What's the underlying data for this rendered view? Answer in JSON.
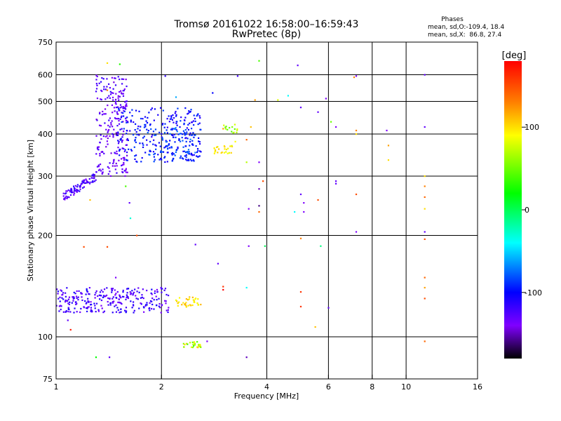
{
  "chart_data": {
    "type": "scatter",
    "title": "Tromsø 20161022 16:58:00–16:59:43",
    "subtitle": "RwPretec (8p)",
    "xlabel": "Frequency [MHz]",
    "ylabel": "Stationary phase Virtual Height [km]",
    "xscale": "log",
    "yscale": "log",
    "xlim": [
      1,
      16
    ],
    "ylim": [
      75,
      750
    ],
    "xticks": [
      1,
      2,
      4,
      6,
      8,
      10,
      16
    ],
    "yticks": [
      75,
      100,
      200,
      300,
      400,
      500,
      600,
      750
    ],
    "grid_x": [
      2,
      4,
      6,
      8,
      10
    ],
    "grid_y": [
      100,
      200,
      300,
      400,
      500,
      600
    ],
    "grid": true,
    "stats": {
      "title": "Phases",
      "line1": "mean, sd,O:-109.4, 18.4",
      "line2": "mean, sd,X:  86.8, 27.4"
    },
    "colorbar": {
      "label": "[deg]",
      "min": -180,
      "max": 180,
      "ticks": [
        100,
        0,
        -100
      ],
      "colors": [
        "#ff0000",
        "#ff8000",
        "#ffff00",
        "#00ff00",
        "#00ffff",
        "#0000ff",
        "#8000ff",
        "#000000"
      ]
    },
    "clusters": [
      {
        "f": [
          1.05,
          1.3
        ],
        "h": [
          260,
          300
        ],
        "phase": [
          -140,
          -110
        ],
        "n": 90,
        "trend": "up"
      },
      {
        "f": [
          1.3,
          1.6
        ],
        "h": [
          300,
          600
        ],
        "phase": [
          -145,
          -115
        ],
        "n": 240
      },
      {
        "f": [
          1.5,
          2.6
        ],
        "h": [
          330,
          480
        ],
        "phase": [
          -115,
          -85
        ],
        "n": 260
      },
      {
        "f": [
          1.8,
          2.6
        ],
        "h": [
          330,
          420
        ],
        "phase": [
          -100,
          -70
        ],
        "n": 80
      },
      {
        "f": [
          2.8,
          3.2
        ],
        "h": [
          350,
          370
        ],
        "phase": [
          80,
          110
        ],
        "n": 25
      },
      {
        "f": [
          3.0,
          3.3
        ],
        "h": [
          400,
          430
        ],
        "phase": [
          40,
          80
        ],
        "n": 15
      },
      {
        "f": [
          1.0,
          2.1
        ],
        "h": [
          118,
          140
        ],
        "phase": [
          -140,
          -105
        ],
        "n": 280
      },
      {
        "f": [
          2.2,
          2.6
        ],
        "h": [
          122,
          132
        ],
        "phase": [
          85,
          115
        ],
        "n": 35
      },
      {
        "f": [
          2.3,
          2.6
        ],
        "h": [
          93,
          97
        ],
        "phase": [
          30,
          110
        ],
        "n": 25
      }
    ],
    "points": [
      {
        "f": 1.4,
        "h": 650,
        "phase": 100
      },
      {
        "f": 1.52,
        "h": 645,
        "phase": 30
      },
      {
        "f": 1.4,
        "h": 540,
        "phase": 130
      },
      {
        "f": 1.25,
        "h": 255,
        "phase": 110
      },
      {
        "f": 1.58,
        "h": 280,
        "phase": 40
      },
      {
        "f": 1.62,
        "h": 250,
        "phase": -130
      },
      {
        "f": 1.63,
        "h": 225,
        "phase": -30
      },
      {
        "f": 1.7,
        "h": 200,
        "phase": 150
      },
      {
        "f": 1.2,
        "h": 185,
        "phase": 150
      },
      {
        "f": 1.4,
        "h": 185,
        "phase": 150
      },
      {
        "f": 1.48,
        "h": 150,
        "phase": -140
      },
      {
        "f": 1.08,
        "h": 112,
        "phase": -130
      },
      {
        "f": 1.1,
        "h": 105,
        "phase": 170
      },
      {
        "f": 1.3,
        "h": 87,
        "phase": 20
      },
      {
        "f": 1.42,
        "h": 87,
        "phase": -130
      },
      {
        "f": 2.05,
        "h": 595,
        "phase": -115
      },
      {
        "f": 2.2,
        "h": 515,
        "phase": -60
      },
      {
        "f": 2.8,
        "h": 530,
        "phase": -100
      },
      {
        "f": 3.3,
        "h": 595,
        "phase": -120
      },
      {
        "f": 3.0,
        "h": 415,
        "phase": 120
      },
      {
        "f": 3.25,
        "h": 380,
        "phase": 90
      },
      {
        "f": 3.5,
        "h": 385,
        "phase": 140
      },
      {
        "f": 3.6,
        "h": 420,
        "phase": 110
      },
      {
        "f": 3.7,
        "h": 505,
        "phase": 120
      },
      {
        "f": 3.8,
        "h": 660,
        "phase": 40
      },
      {
        "f": 3.8,
        "h": 330,
        "phase": -140
      },
      {
        "f": 3.8,
        "h": 275,
        "phase": -150
      },
      {
        "f": 3.9,
        "h": 290,
        "phase": 150
      },
      {
        "f": 3.8,
        "h": 245,
        "phase": -160
      },
      {
        "f": 3.8,
        "h": 235,
        "phase": 140
      },
      {
        "f": 3.55,
        "h": 240,
        "phase": -140
      },
      {
        "f": 3.55,
        "h": 186,
        "phase": -140
      },
      {
        "f": 3.95,
        "h": 186,
        "phase": 0
      },
      {
        "f": 3.5,
        "h": 330,
        "phase": 70
      },
      {
        "f": 3.5,
        "h": 140,
        "phase": -40
      },
      {
        "f": 2.5,
        "h": 188,
        "phase": -130
      },
      {
        "f": 2.9,
        "h": 165,
        "phase": -130
      },
      {
        "f": 3.0,
        "h": 141,
        "phase": 160
      },
      {
        "f": 3.0,
        "h": 138,
        "phase": 180
      },
      {
        "f": 3.5,
        "h": 87,
        "phase": -150
      },
      {
        "f": 2.7,
        "h": 97,
        "phase": -140
      },
      {
        "f": 4.3,
        "h": 505,
        "phase": 80
      },
      {
        "f": 4.6,
        "h": 520,
        "phase": -40
      },
      {
        "f": 4.9,
        "h": 640,
        "phase": -130
      },
      {
        "f": 5.0,
        "h": 480,
        "phase": -130
      },
      {
        "f": 5.6,
        "h": 465,
        "phase": -130
      },
      {
        "f": 5.0,
        "h": 265,
        "phase": -130
      },
      {
        "f": 5.1,
        "h": 250,
        "phase": -140
      },
      {
        "f": 4.8,
        "h": 235,
        "phase": -40
      },
      {
        "f": 5.1,
        "h": 235,
        "phase": -140
      },
      {
        "f": 5.0,
        "h": 196,
        "phase": 130
      },
      {
        "f": 5.7,
        "h": 186,
        "phase": -10
      },
      {
        "f": 5.0,
        "h": 136,
        "phase": 160
      },
      {
        "f": 5.0,
        "h": 123,
        "phase": 160
      },
      {
        "f": 5.5,
        "h": 107,
        "phase": 110
      },
      {
        "f": 6.0,
        "h": 122,
        "phase": -130
      },
      {
        "f": 5.9,
        "h": 510,
        "phase": -140
      },
      {
        "f": 6.1,
        "h": 435,
        "phase": 50
      },
      {
        "f": 6.3,
        "h": 420,
        "phase": -140
      },
      {
        "f": 6.3,
        "h": 290,
        "phase": -130
      },
      {
        "f": 6.3,
        "h": 285,
        "phase": -130
      },
      {
        "f": 5.6,
        "h": 255,
        "phase": 150
      },
      {
        "f": 7.1,
        "h": 590,
        "phase": 130
      },
      {
        "f": 7.2,
        "h": 595,
        "phase": -140
      },
      {
        "f": 7.2,
        "h": 410,
        "phase": 130
      },
      {
        "f": 7.2,
        "h": 400,
        "phase": 100
      },
      {
        "f": 7.2,
        "h": 265,
        "phase": 150
      },
      {
        "f": 7.2,
        "h": 205,
        "phase": -140
      },
      {
        "f": 8.8,
        "h": 410,
        "phase": -140
      },
      {
        "f": 8.9,
        "h": 370,
        "phase": 120
      },
      {
        "f": 8.9,
        "h": 335,
        "phase": 100
      },
      {
        "f": 11.3,
        "h": 600,
        "phase": -130
      },
      {
        "f": 11.3,
        "h": 420,
        "phase": -130
      },
      {
        "f": 11.3,
        "h": 300,
        "phase": 100
      },
      {
        "f": 11.3,
        "h": 280,
        "phase": 130
      },
      {
        "f": 11.3,
        "h": 260,
        "phase": 140
      },
      {
        "f": 11.3,
        "h": 240,
        "phase": 100
      },
      {
        "f": 11.3,
        "h": 205,
        "phase": -130
      },
      {
        "f": 11.3,
        "h": 195,
        "phase": 150
      },
      {
        "f": 11.3,
        "h": 150,
        "phase": 140
      },
      {
        "f": 11.3,
        "h": 140,
        "phase": 120
      },
      {
        "f": 11.3,
        "h": 130,
        "phase": 150
      },
      {
        "f": 11.3,
        "h": 97,
        "phase": 140
      }
    ]
  }
}
